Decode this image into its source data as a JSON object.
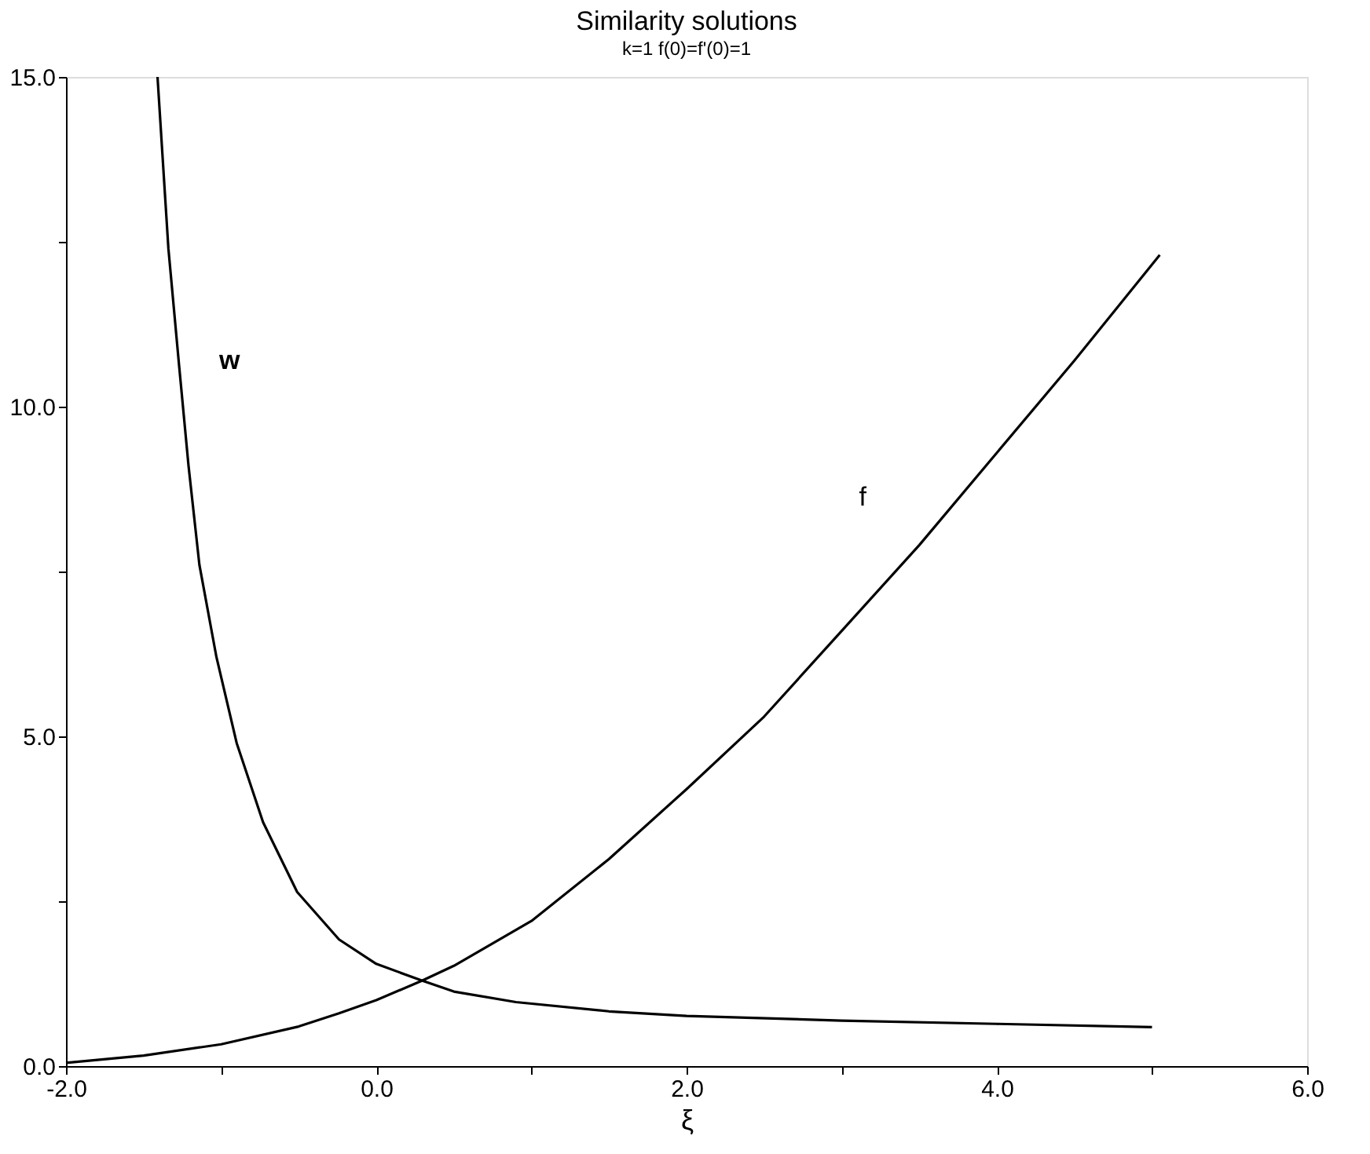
{
  "chart_data": {
    "type": "line",
    "title": "Similarity solutions",
    "subtitle": "k=1  f(0)=f'(0)=1",
    "xlabel": "ξ",
    "xlim": [
      -2.0,
      6.0
    ],
    "ylim": [
      0.0,
      15.0
    ],
    "xticks": [
      {
        "value": -2.0,
        "label": "-2.0"
      },
      {
        "value": -1.0,
        "label": null
      },
      {
        "value": 0.0,
        "label": "0.0"
      },
      {
        "value": 1.0,
        "label": null
      },
      {
        "value": 2.0,
        "label": "2.0"
      },
      {
        "value": 3.0,
        "label": null
      },
      {
        "value": 4.0,
        "label": "4.0"
      },
      {
        "value": 5.0,
        "label": null
      },
      {
        "value": 6.0,
        "label": "6.0"
      }
    ],
    "yticks": [
      {
        "value": 0.0,
        "label": "0.0"
      },
      {
        "value": 2.5,
        "label": null
      },
      {
        "value": 5.0,
        "label": "5.0"
      },
      {
        "value": 7.5,
        "label": null
      },
      {
        "value": 10.0,
        "label": "10.0"
      },
      {
        "value": 12.5,
        "label": null
      },
      {
        "value": 15.0,
        "label": "15.0"
      }
    ],
    "grid": false,
    "marker": "none",
    "line_style": "solid",
    "series": [
      {
        "name": "w",
        "color": "#000000",
        "x": [
          -1.41,
          -1.34,
          -1.27,
          -1.21,
          -1.14,
          -1.03,
          -0.9,
          -0.73,
          -0.51,
          -0.24,
          0.0,
          0.29,
          0.5,
          0.9,
          1.5,
          2.0,
          3.0,
          4.0,
          5.0
        ],
        "values": [
          15.0,
          12.4,
          10.6,
          9.1,
          7.6,
          6.2,
          4.9,
          3.7,
          2.64,
          1.92,
          1.55,
          1.3,
          1.13,
          0.97,
          0.83,
          0.76,
          0.69,
          0.64,
          0.59
        ]
      },
      {
        "name": "f",
        "color": "#000000",
        "x": [
          -2.0,
          -1.5,
          -1.0,
          -0.5,
          -0.24,
          0.0,
          0.3,
          0.5,
          1.0,
          1.5,
          2.0,
          2.5,
          3.0,
          3.5,
          4.0,
          4.5,
          5.05
        ],
        "values": [
          0.05,
          0.16,
          0.33,
          0.6,
          0.8,
          1.0,
          1.3,
          1.52,
          2.2,
          3.14,
          4.2,
          5.3,
          6.6,
          7.9,
          9.3,
          10.7,
          12.3
        ]
      }
    ]
  }
}
